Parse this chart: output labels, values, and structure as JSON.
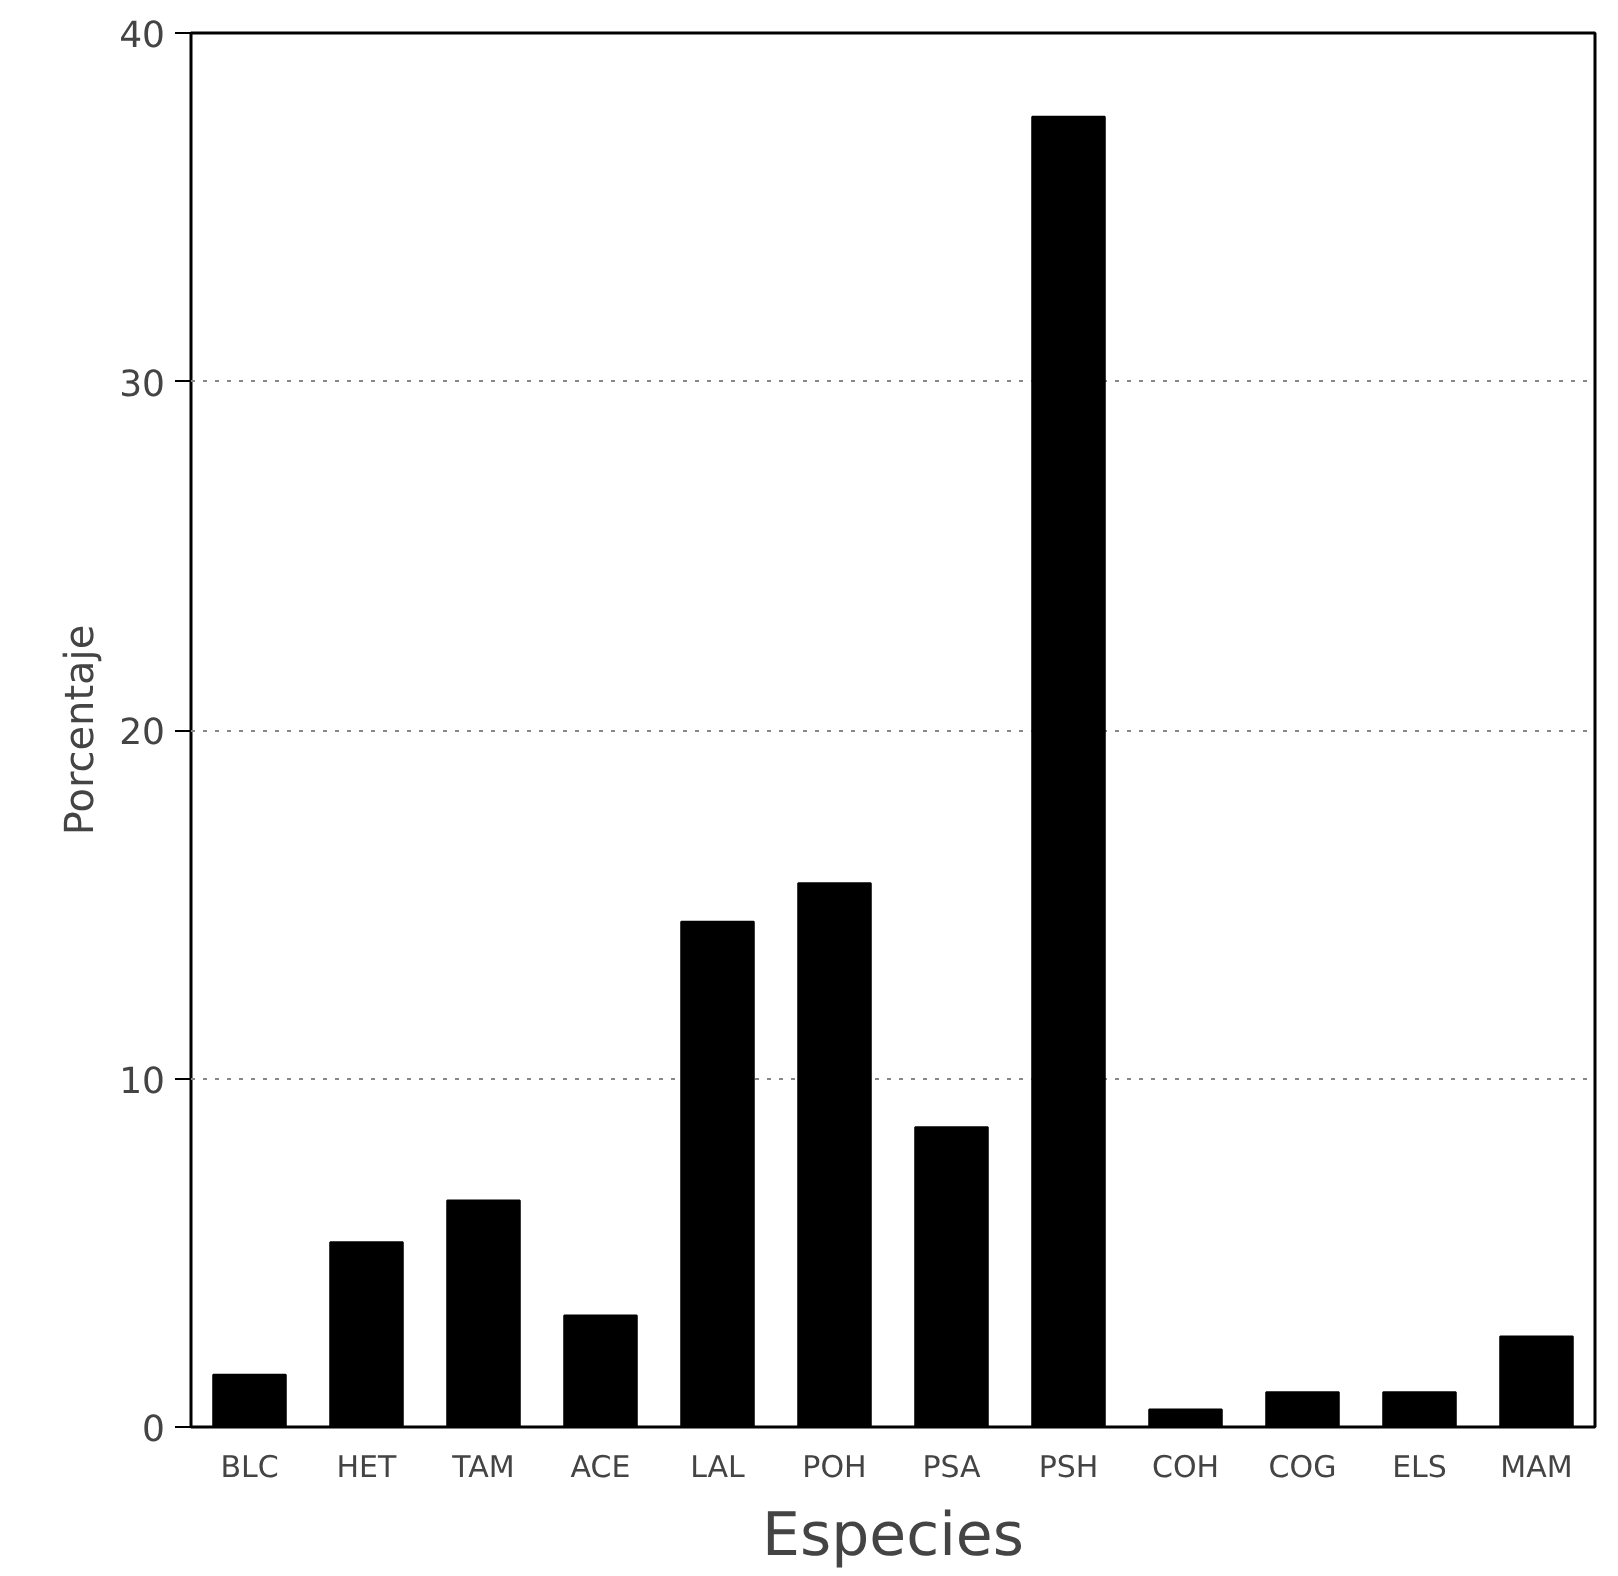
{
  "chart_data": {
    "type": "bar",
    "xlabel": "Especies",
    "ylabel": "Porcentaje",
    "categories": [
      "BLC",
      "HET",
      "TAM",
      "ACE",
      "LAL",
      "POH",
      "PSA",
      "PSH",
      "COH",
      "COG",
      "ELS",
      "MAM"
    ],
    "values": [
      1.5,
      5.3,
      6.5,
      3.2,
      14.5,
      15.6,
      8.6,
      37.6,
      0.5,
      1.0,
      1.0,
      2.6
    ],
    "color": "#000000",
    "ylim": [
      0,
      40
    ],
    "yticks": [
      0,
      10,
      20,
      30,
      40
    ],
    "grid": "y"
  }
}
